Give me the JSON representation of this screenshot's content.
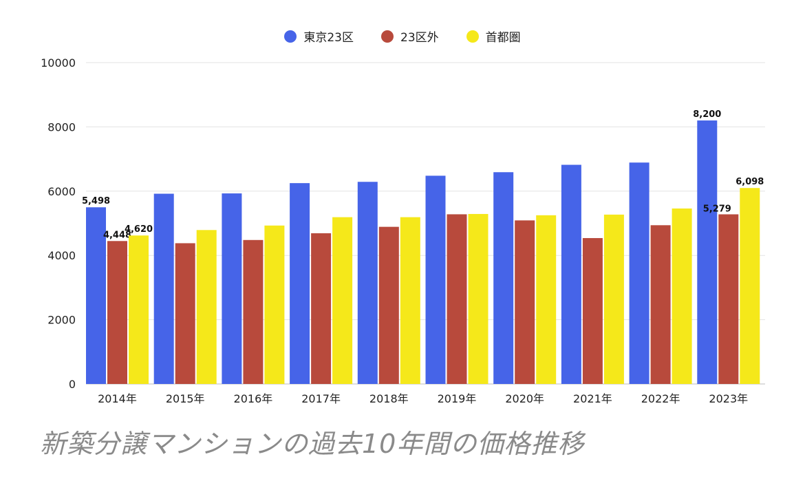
{
  "chart_data": {
    "type": "bar",
    "categories": [
      "2014年",
      "2015年",
      "2016年",
      "2017年",
      "2018年",
      "2019年",
      "2020年",
      "2021年",
      "2022年",
      "2023年"
    ],
    "series": [
      {
        "name": "東京23区",
        "color": "#4664E8",
        "values": [
          5498,
          5920,
          5930,
          6250,
          6290,
          6480,
          6590,
          6820,
          6890,
          8200
        ],
        "labels": [
          "5,498",
          "",
          "",
          "",
          "",
          "",
          "",
          "",
          "",
          "8,200"
        ]
      },
      {
        "name": "23区外",
        "color": "#B84A3C",
        "values": [
          4448,
          4380,
          4480,
          4690,
          4890,
          5280,
          5090,
          4540,
          4940,
          5279
        ],
        "labels": [
          "4,448",
          "",
          "",
          "",
          "",
          "",
          "",
          "",
          "",
          "5,279"
        ]
      },
      {
        "name": "首都圏",
        "color": "#F5E81A",
        "values": [
          4620,
          4790,
          4930,
          5190,
          5190,
          5290,
          5250,
          5270,
          5460,
          6098
        ],
        "labels": [
          "4,620",
          "",
          "",
          "",
          "",
          "",
          "",
          "",
          "",
          "6,098"
        ]
      }
    ],
    "yticks": [
      "0",
      "2000",
      "4000",
      "6000",
      "8000",
      "10000"
    ],
    "ylim": [
      0,
      10000
    ],
    "grid": true,
    "legend": "top-center"
  },
  "caption": "新築分譲マンションの過去10年間の価格推移"
}
